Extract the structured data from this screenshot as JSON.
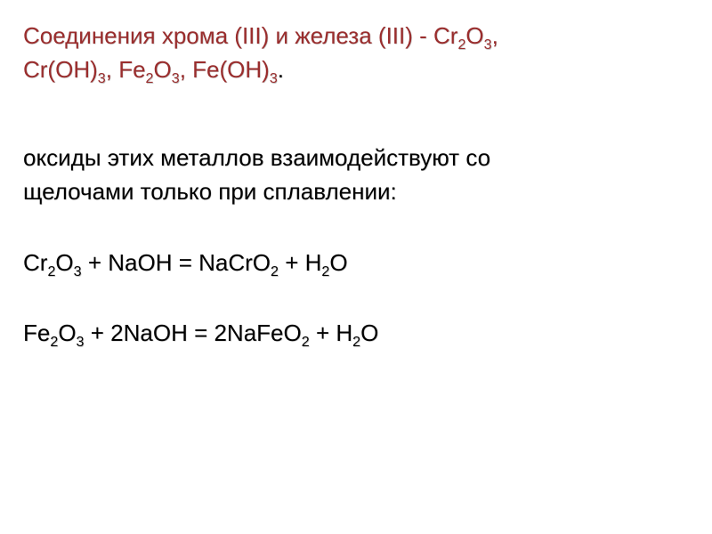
{
  "colors": {
    "title": "#9a2d2d",
    "body": "#000000",
    "background": "#ffffff"
  },
  "typography": {
    "font_family": "Arial",
    "font_size_pt": 20,
    "line_height": 1.45
  },
  "title": {
    "prefix": "Соединения хрома (III) и железа (III)",
    "sep": " - ",
    "compounds": [
      {
        "base": "Cr",
        "sub": "2",
        "base2": "O",
        "sub2": "3"
      },
      {
        "base": "Cr(OH)",
        "sub": "3"
      },
      {
        "base": "Fe",
        "sub": "2",
        "base2": "O",
        "sub2": "3"
      },
      {
        "base": "Fe(OH)",
        "sub": "3"
      }
    ]
  },
  "paragraph": {
    "l1": "оксиды этих металлов взаимодействуют со",
    "l2": "щелочами только при сплавлении:"
  },
  "equations": [
    {
      "lhs": [
        {
          "t": "Cr"
        },
        {
          "s": "2"
        },
        {
          "t": "O"
        },
        {
          "s": "3"
        },
        {
          "t": " + NaOH  =  NaCrO"
        },
        {
          "s": "2"
        },
        {
          "t": " + H"
        },
        {
          "s": "2"
        },
        {
          "t": "O"
        }
      ]
    },
    {
      "lhs": [
        {
          "t": "Fe"
        },
        {
          "s": "2"
        },
        {
          "t": "O"
        },
        {
          "s": "3"
        },
        {
          "t": " + 2NaOH  =  2NaFeO"
        },
        {
          "s": "2"
        },
        {
          "t": " + H"
        },
        {
          "s": "2"
        },
        {
          "t": "O"
        }
      ]
    }
  ]
}
